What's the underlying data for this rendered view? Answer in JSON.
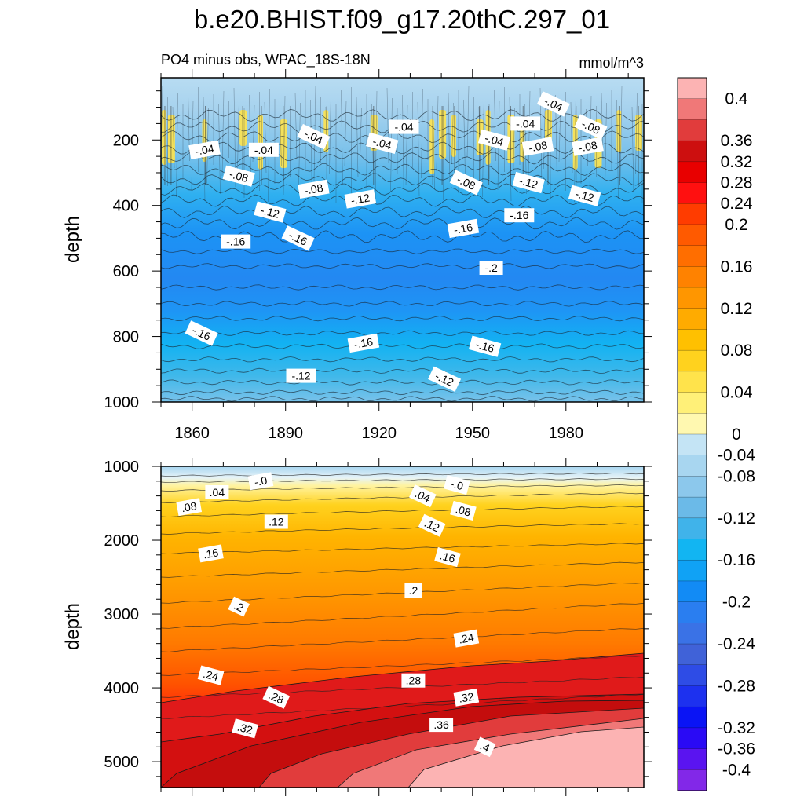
{
  "chart_data": [
    {
      "type": "heatmap",
      "title": "b.e20.BHIST.f09_g17.20thC.297_01",
      "subtitle": "PO4 minus obs, WPAC_18S-18N",
      "units": "mmol/m^3",
      "xlabel": "",
      "ylabel": "depth",
      "xlim": [
        1850,
        2005
      ],
      "ylim": [
        1000,
        10
      ],
      "x_ticks": [
        "1860",
        "1890",
        "1920",
        "1950",
        "1980"
      ],
      "y_ticks": [
        "200",
        "400",
        "600",
        "800",
        "1000"
      ],
      "depth_profile": [
        {
          "depth": 10,
          "value": -0.03
        },
        {
          "depth": 100,
          "value": -0.02
        },
        {
          "depth": 200,
          "value": -0.05
        },
        {
          "depth": 300,
          "value": -0.1
        },
        {
          "depth": 400,
          "value": -0.14
        },
        {
          "depth": 500,
          "value": -0.17
        },
        {
          "depth": 600,
          "value": -0.2
        },
        {
          "depth": 700,
          "value": -0.19
        },
        {
          "depth": 800,
          "value": -0.16
        },
        {
          "depth": 900,
          "value": -0.13
        },
        {
          "depth": 1000,
          "value": -0.1
        }
      ],
      "contour_labels": [
        {
          "text": "-.04",
          "year": 1864,
          "depth": 230
        },
        {
          "text": "-.08",
          "year": 1875,
          "depth": 310
        },
        {
          "text": "-.04",
          "year": 1883,
          "depth": 230
        },
        {
          "text": "-.04",
          "year": 1899,
          "depth": 190
        },
        {
          "text": "-.08",
          "year": 1899,
          "depth": 350
        },
        {
          "text": "-.12",
          "year": 1885,
          "depth": 420
        },
        {
          "text": "-.16",
          "year": 1874,
          "depth": 510
        },
        {
          "text": "-.16",
          "year": 1894,
          "depth": 500
        },
        {
          "text": "-.12",
          "year": 1914,
          "depth": 380
        },
        {
          "text": "-.04",
          "year": 1921,
          "depth": 210
        },
        {
          "text": "-.04",
          "year": 1928,
          "depth": 160
        },
        {
          "text": "-.08",
          "year": 1948,
          "depth": 330
        },
        {
          "text": "-.16",
          "year": 1947,
          "depth": 470
        },
        {
          "text": "-.04",
          "year": 1957,
          "depth": 200
        },
        {
          "text": "-.04",
          "year": 1967,
          "depth": 150
        },
        {
          "text": "-.04",
          "year": 1976,
          "depth": 90
        },
        {
          "text": "-.08",
          "year": 1971,
          "depth": 220
        },
        {
          "text": "-.12",
          "year": 1968,
          "depth": 330
        },
        {
          "text": "-.16",
          "year": 1965,
          "depth": 430
        },
        {
          "text": "-.08",
          "year": 1988,
          "depth": 160
        },
        {
          "text": "-.08",
          "year": 1987,
          "depth": 220
        },
        {
          "text": "-.12",
          "year": 1986,
          "depth": 370
        },
        {
          "text": "-.2",
          "year": 1956,
          "depth": 590
        },
        {
          "text": "-.16",
          "year": 1863,
          "depth": 790
        },
        {
          "text": "-.16",
          "year": 1915,
          "depth": 820
        },
        {
          "text": "-.16",
          "year": 1954,
          "depth": 830
        },
        {
          "text": "-.12",
          "year": 1895,
          "depth": 920
        },
        {
          "text": "-.12",
          "year": 1941,
          "depth": 930
        }
      ]
    },
    {
      "type": "heatmap",
      "xlabel": "",
      "ylabel": "depth",
      "xlim": [
        1850,
        2005
      ],
      "ylim": [
        5350,
        1000
      ],
      "y_ticks": [
        "1000",
        "2000",
        "3000",
        "4000",
        "5000"
      ],
      "contour_labels": [
        {
          "text": "-.0",
          "year": 1882,
          "depth": 1200
        },
        {
          "text": "-.0",
          "year": 1945,
          "depth": 1250
        },
        {
          "text": ".04",
          "year": 1868,
          "depth": 1350
        },
        {
          "text": ".04",
          "year": 1934,
          "depth": 1400
        },
        {
          "text": ".08",
          "year": 1859,
          "depth": 1550
        },
        {
          "text": ".08",
          "year": 1947,
          "depth": 1600
        },
        {
          "text": ".12",
          "year": 1887,
          "depth": 1750
        },
        {
          "text": ".12",
          "year": 1937,
          "depth": 1800
        },
        {
          "text": ".16",
          "year": 1866,
          "depth": 2180
        },
        {
          "text": ".16",
          "year": 1942,
          "depth": 2230
        },
        {
          "text": ".2",
          "year": 1931,
          "depth": 2680
        },
        {
          "text": ".2",
          "year": 1875,
          "depth": 2900
        },
        {
          "text": ".24",
          "year": 1948,
          "depth": 3330
        },
        {
          "text": ".24",
          "year": 1866,
          "depth": 3830
        },
        {
          "text": ".28",
          "year": 1931,
          "depth": 3900
        },
        {
          "text": ".28",
          "year": 1887,
          "depth": 4130
        },
        {
          "text": ".32",
          "year": 1948,
          "depth": 4130
        },
        {
          "text": ".32",
          "year": 1877,
          "depth": 4550
        },
        {
          "text": ".36",
          "year": 1940,
          "depth": 4500
        },
        {
          "text": ".4",
          "year": 1954,
          "depth": 4800
        }
      ]
    }
  ],
  "colorbar": {
    "colors": [
      "#fcb3b3",
      "#f07878",
      "#e13c3c",
      "#cd0f0f",
      "#e80000",
      "#ff1010",
      "#ff3c00",
      "#ff5a00",
      "#ff6e00",
      "#ff8200",
      "#ff9600",
      "#ffab00",
      "#ffc000",
      "#ffd21e",
      "#ffe34b",
      "#fff078",
      "#fff8b0",
      "#c4e4f5",
      "#a8d6f0",
      "#8cc8ec",
      "#6bbae8",
      "#40b3ea",
      "#12b5f2",
      "#10a2f5",
      "#128bf5",
      "#2a7ef0",
      "#3a72e6",
      "#4062d8",
      "#2e4ce6",
      "#1d31ef",
      "#0a14f5",
      "#2a0af5",
      "#5a14f0",
      "#8228e8"
    ],
    "labels": [
      "0.4",
      "0.36",
      "0.32",
      "0.28",
      "0.24",
      "0.2",
      "0.16",
      "0.12",
      "0.08",
      "0.04",
      "0",
      "-0.04",
      "-0.08",
      "-0.12",
      "-0.16",
      "-0.2",
      "-0.24",
      "-0.28",
      "-0.32",
      "-0.36",
      "-0.4"
    ]
  }
}
